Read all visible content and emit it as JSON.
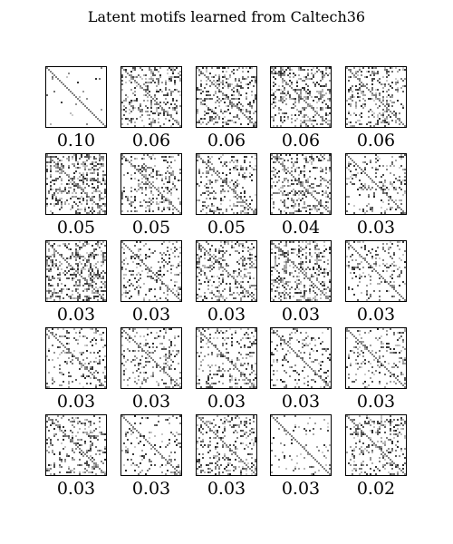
{
  "chart_data": {
    "type": "heatmap",
    "title": "Latent motifs learned from Caltech36",
    "rows": 5,
    "cols": 5,
    "panels": [
      {
        "weight": "0.10",
        "density": 0.02
      },
      {
        "weight": "0.06",
        "density": 0.35
      },
      {
        "weight": "0.06",
        "density": 0.35
      },
      {
        "weight": "0.06",
        "density": 0.45
      },
      {
        "weight": "0.06",
        "density": 0.35
      },
      {
        "weight": "0.05",
        "density": 0.4
      },
      {
        "weight": "0.05",
        "density": 0.3
      },
      {
        "weight": "0.05",
        "density": 0.3
      },
      {
        "weight": "0.04",
        "density": 0.35
      },
      {
        "weight": "0.03",
        "density": 0.2
      },
      {
        "weight": "0.03",
        "density": 0.4
      },
      {
        "weight": "0.03",
        "density": 0.25
      },
      {
        "weight": "0.03",
        "density": 0.35
      },
      {
        "weight": "0.03",
        "density": 0.4
      },
      {
        "weight": "0.03",
        "density": 0.2
      },
      {
        "weight": "0.03",
        "density": 0.22
      },
      {
        "weight": "0.03",
        "density": 0.25
      },
      {
        "weight": "0.03",
        "density": 0.3
      },
      {
        "weight": "0.03",
        "density": 0.2
      },
      {
        "weight": "0.03",
        "density": 0.25
      },
      {
        "weight": "0.03",
        "density": 0.3
      },
      {
        "weight": "0.03",
        "density": 0.2
      },
      {
        "weight": "0.03",
        "density": 0.3
      },
      {
        "weight": "0.03",
        "density": 0.12
      },
      {
        "weight": "0.02",
        "density": 0.35
      }
    ]
  }
}
